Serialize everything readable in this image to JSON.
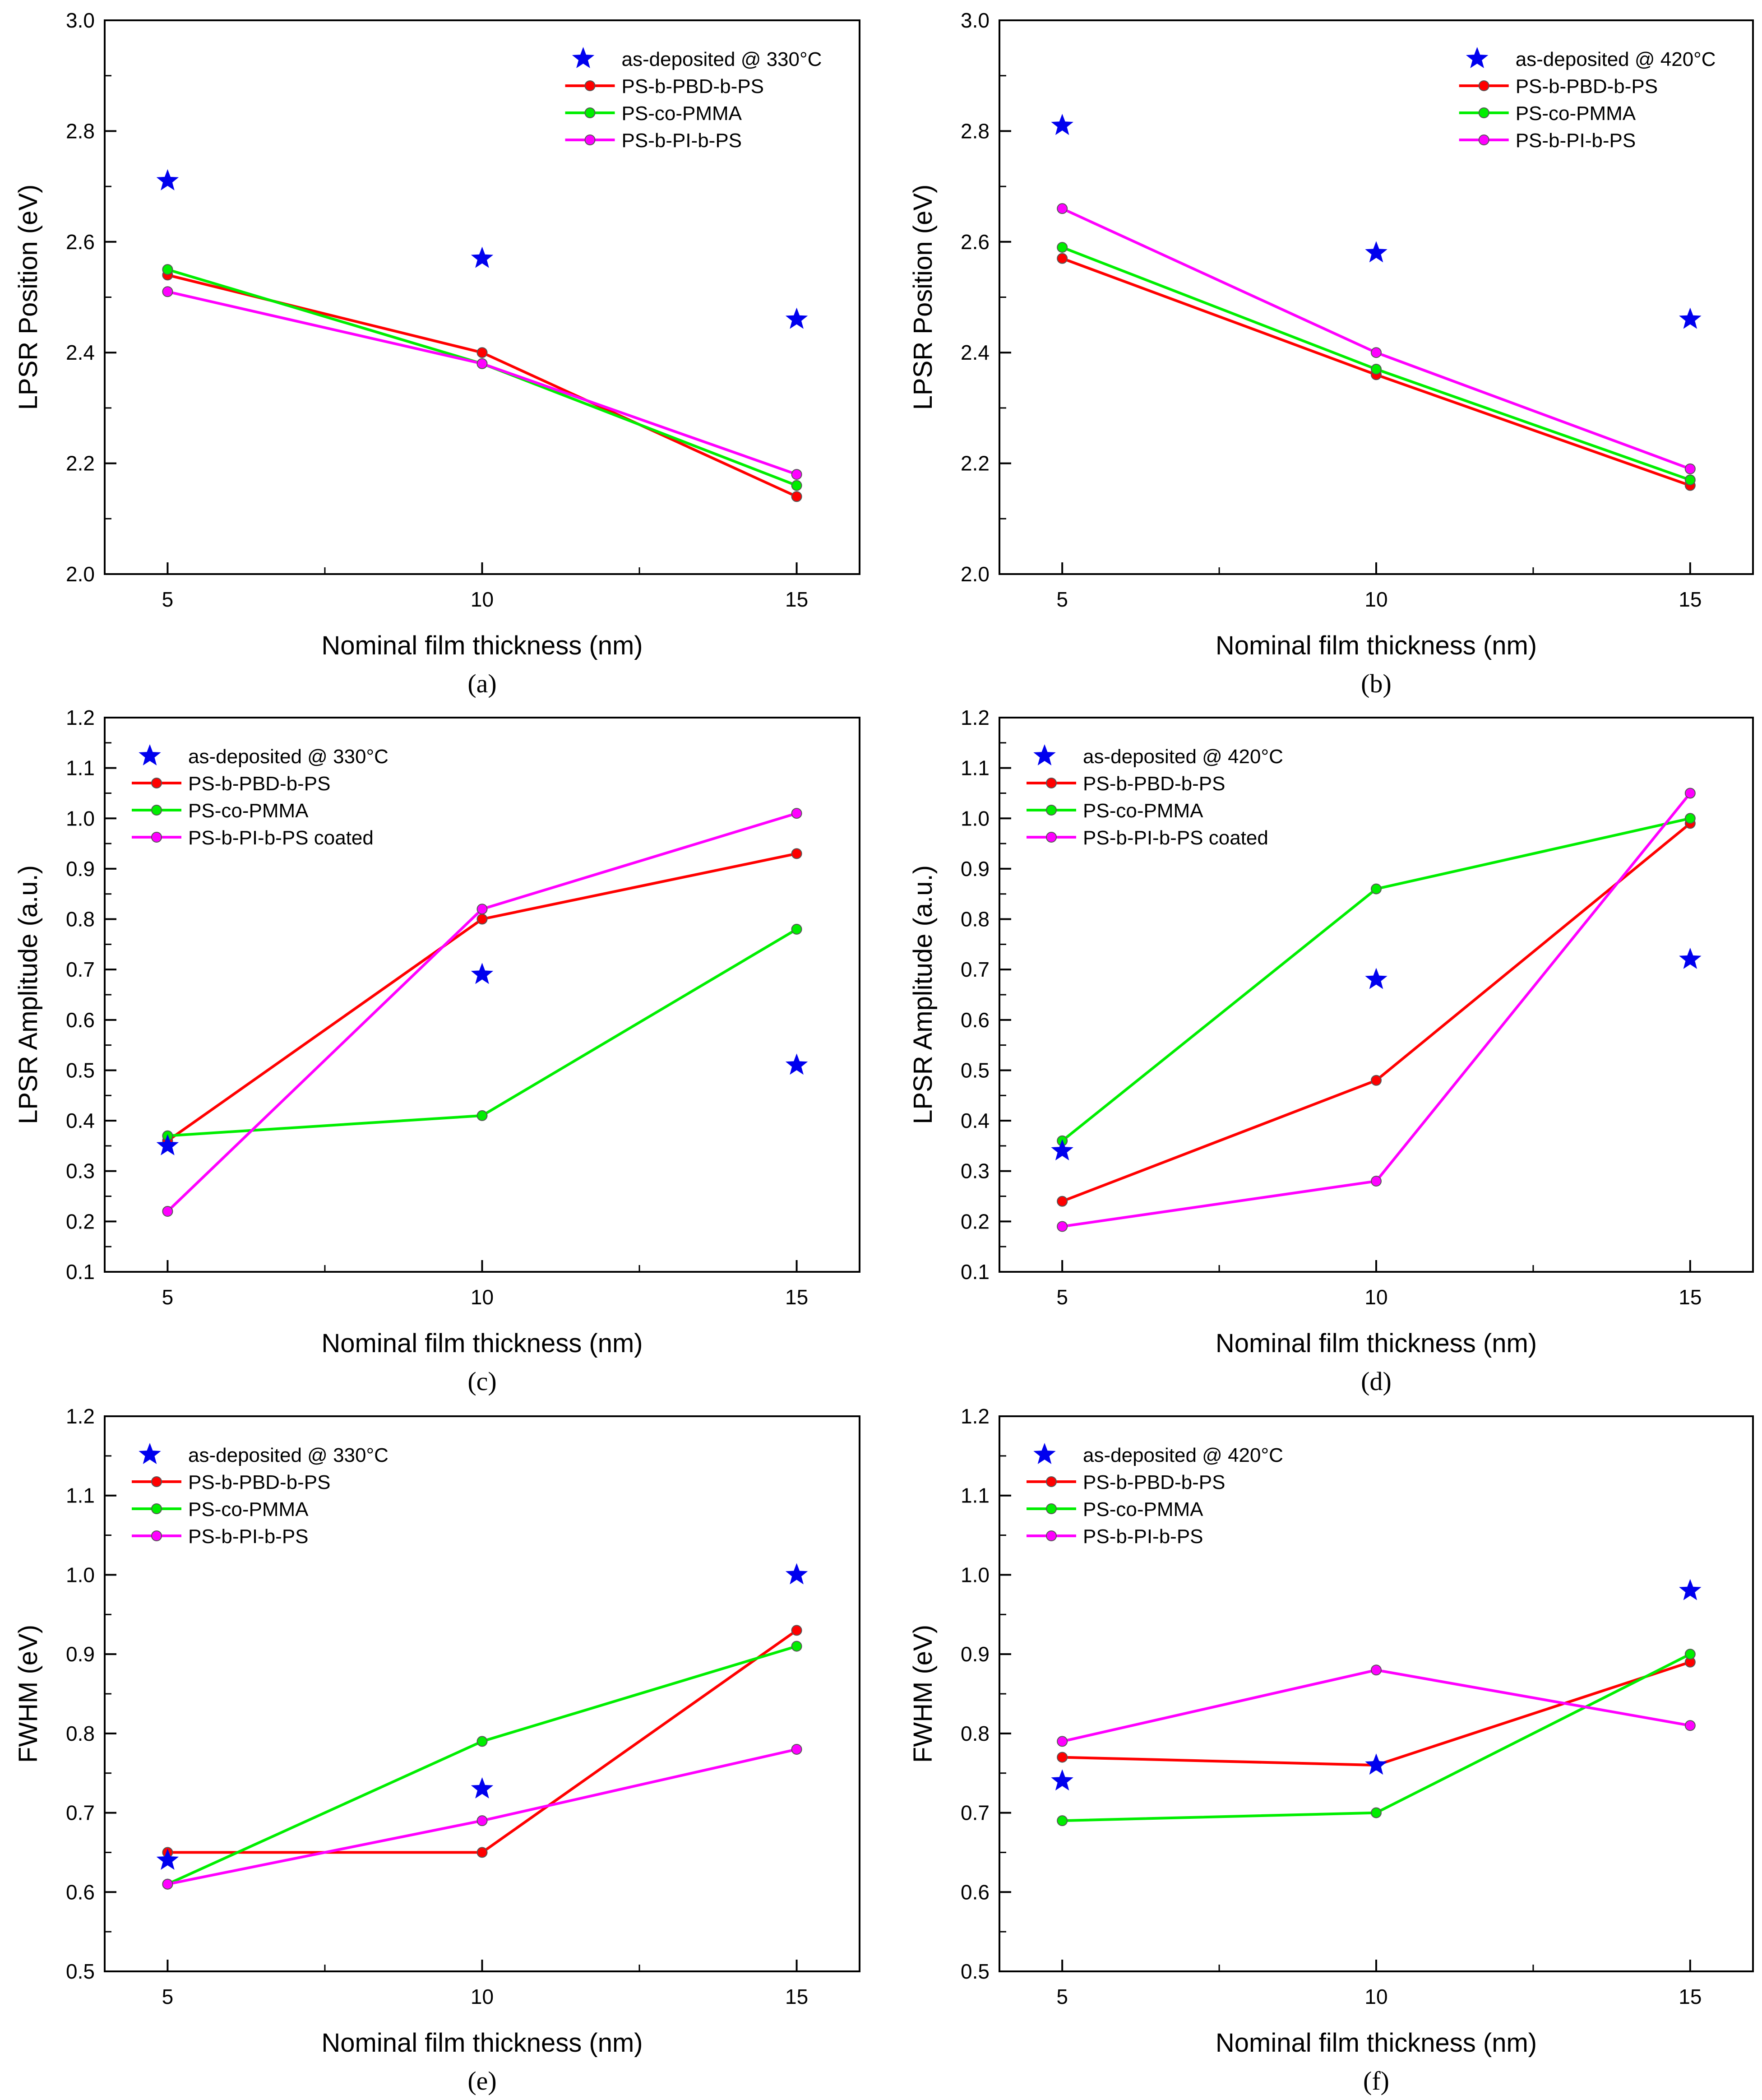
{
  "figure": {
    "colors": {
      "star": "#0000ee",
      "PS-b-PBD-b-PS": "#ff0000",
      "PS-co-PMMA": "#00ee00",
      "PS-b-PI-b-PS": "#ff00ff"
    }
  },
  "chart_data": [
    {
      "panel": "(a)",
      "panel_letter": "a",
      "type": "line",
      "xlabel": "Nominal film thickness (nm)",
      "ylabel": "LPSR Position (eV)",
      "x": [
        5,
        10,
        15
      ],
      "xticks": [
        "5",
        "10",
        "15"
      ],
      "xlim": [
        4,
        16
      ],
      "ylim": [
        2.0,
        3.0
      ],
      "yticks": [
        "2.0",
        "2.2",
        "2.4",
        "2.6",
        "2.8",
        "3.0"
      ],
      "yminor": 0.1,
      "legend_position": "top-right",
      "stars": {
        "name": "as-deposited @ 330°C",
        "values": [
          2.71,
          2.57,
          2.46
        ]
      },
      "series": [
        {
          "name": "PS-b-PBD-b-PS",
          "color": "#ff0000",
          "values": [
            2.54,
            2.4,
            2.14
          ]
        },
        {
          "name": "PS-co-PMMA",
          "color": "#00ee00",
          "values": [
            2.55,
            2.38,
            2.16
          ]
        },
        {
          "name": "PS-b-PI-b-PS",
          "color": "#ff00ff",
          "values": [
            2.51,
            2.38,
            2.18
          ]
        }
      ]
    },
    {
      "panel": "(b)",
      "panel_letter": "b",
      "type": "line",
      "xlabel": "Nominal film thickness (nm)",
      "ylabel": "LPSR Position (eV)",
      "x": [
        5,
        10,
        15
      ],
      "xticks": [
        "5",
        "10",
        "15"
      ],
      "xlim": [
        4,
        16
      ],
      "ylim": [
        2.0,
        3.0
      ],
      "yticks": [
        "2.0",
        "2.2",
        "2.4",
        "2.6",
        "2.8",
        "3.0"
      ],
      "yminor": 0.1,
      "legend_position": "top-right",
      "stars": {
        "name": "as-deposited @ 420°C",
        "values": [
          2.81,
          2.58,
          2.46
        ]
      },
      "series": [
        {
          "name": "PS-b-PBD-b-PS",
          "color": "#ff0000",
          "values": [
            2.57,
            2.36,
            2.16
          ]
        },
        {
          "name": "PS-co-PMMA",
          "color": "#00ee00",
          "values": [
            2.59,
            2.37,
            2.17
          ]
        },
        {
          "name": "PS-b-PI-b-PS",
          "color": "#ff00ff",
          "values": [
            2.66,
            2.4,
            2.19
          ]
        }
      ]
    },
    {
      "panel": "(c)",
      "panel_letter": "c",
      "type": "line",
      "xlabel": "Nominal film thickness (nm)",
      "ylabel": "LPSR Amplitude (a.u.)",
      "x": [
        5,
        10,
        15
      ],
      "xticks": [
        "5",
        "10",
        "15"
      ],
      "xlim": [
        4,
        16
      ],
      "ylim": [
        0.1,
        1.2
      ],
      "yticks": [
        "0.1",
        "0.2",
        "0.3",
        "0.4",
        "0.5",
        "0.6",
        "0.7",
        "0.8",
        "0.9",
        "1.0",
        "1.1",
        "1.2"
      ],
      "yminor": 0.05,
      "legend_position": "top-left",
      "stars": {
        "name": "as-deposited @ 330°C",
        "values": [
          0.35,
          0.69,
          0.51
        ]
      },
      "series": [
        {
          "name": "PS-b-PBD-b-PS",
          "color": "#ff0000",
          "values": [
            0.36,
            0.8,
            0.93
          ]
        },
        {
          "name": "PS-co-PMMA",
          "color": "#00ee00",
          "values": [
            0.37,
            0.41,
            0.78
          ]
        },
        {
          "name": "PS-b-PI-b-PS coated",
          "color": "#ff00ff",
          "values": [
            0.22,
            0.82,
            1.01
          ]
        }
      ]
    },
    {
      "panel": "(d)",
      "panel_letter": "d",
      "type": "line",
      "xlabel": "Nominal film thickness (nm)",
      "ylabel": "LPSR Amplitude (a.u.)",
      "x": [
        5,
        10,
        15
      ],
      "xticks": [
        "5",
        "10",
        "15"
      ],
      "xlim": [
        4,
        16
      ],
      "ylim": [
        0.1,
        1.2
      ],
      "yticks": [
        "0.1",
        "0.2",
        "0.3",
        "0.4",
        "0.5",
        "0.6",
        "0.7",
        "0.8",
        "0.9",
        "1.0",
        "1.1",
        "1.2"
      ],
      "yminor": 0.05,
      "legend_position": "top-left",
      "stars": {
        "name": "as-deposited @ 420°C",
        "values": [
          0.34,
          0.68,
          0.72
        ]
      },
      "series": [
        {
          "name": "PS-b-PBD-b-PS",
          "color": "#ff0000",
          "values": [
            0.24,
            0.48,
            0.99
          ]
        },
        {
          "name": "PS-co-PMMA",
          "color": "#00ee00",
          "values": [
            0.36,
            0.86,
            1.0
          ]
        },
        {
          "name": "PS-b-PI-b-PS coated",
          "color": "#ff00ff",
          "values": [
            0.19,
            0.28,
            1.05
          ]
        }
      ]
    },
    {
      "panel": "(e)",
      "panel_letter": "e",
      "type": "line",
      "xlabel": "Nominal film thickness (nm)",
      "ylabel": "FWHM (eV)",
      "x": [
        5,
        10,
        15
      ],
      "xticks": [
        "5",
        "10",
        "15"
      ],
      "xlim": [
        4,
        16
      ],
      "ylim": [
        0.5,
        1.2
      ],
      "yticks": [
        "0.5",
        "0.6",
        "0.7",
        "0.8",
        "0.9",
        "1.0",
        "1.1",
        "1.2"
      ],
      "yminor": 0.05,
      "legend_position": "top-left",
      "stars": {
        "name": "as-deposited @ 330°C",
        "values": [
          0.64,
          0.73,
          1.0
        ]
      },
      "series": [
        {
          "name": "PS-b-PBD-b-PS",
          "color": "#ff0000",
          "values": [
            0.65,
            0.65,
            0.93
          ]
        },
        {
          "name": "PS-co-PMMA",
          "color": "#00ee00",
          "values": [
            0.61,
            0.79,
            0.91
          ]
        },
        {
          "name": "PS-b-PI-b-PS",
          "color": "#ff00ff",
          "values": [
            0.61,
            0.69,
            0.78
          ]
        }
      ]
    },
    {
      "panel": "(f)",
      "panel_letter": "f",
      "type": "line",
      "xlabel": "Nominal film thickness (nm)",
      "ylabel": "FWHM (eV)",
      "x": [
        5,
        10,
        15
      ],
      "xticks": [
        "5",
        "10",
        "15"
      ],
      "xlim": [
        4,
        16
      ],
      "ylim": [
        0.5,
        1.2
      ],
      "yticks": [
        "0.5",
        "0.6",
        "0.7",
        "0.8",
        "0.9",
        "1.0",
        "1.1",
        "1.2"
      ],
      "yminor": 0.05,
      "legend_position": "top-left",
      "stars": {
        "name": "as-deposited @ 420°C",
        "values": [
          0.74,
          0.76,
          0.98
        ]
      },
      "series": [
        {
          "name": "PS-b-PBD-b-PS",
          "color": "#ff0000",
          "values": [
            0.77,
            0.76,
            0.89
          ]
        },
        {
          "name": "PS-co-PMMA",
          "color": "#00ee00",
          "values": [
            0.69,
            0.7,
            0.9
          ]
        },
        {
          "name": "PS-b-PI-b-PS",
          "color": "#ff00ff",
          "values": [
            0.79,
            0.88,
            0.81
          ]
        }
      ]
    }
  ]
}
